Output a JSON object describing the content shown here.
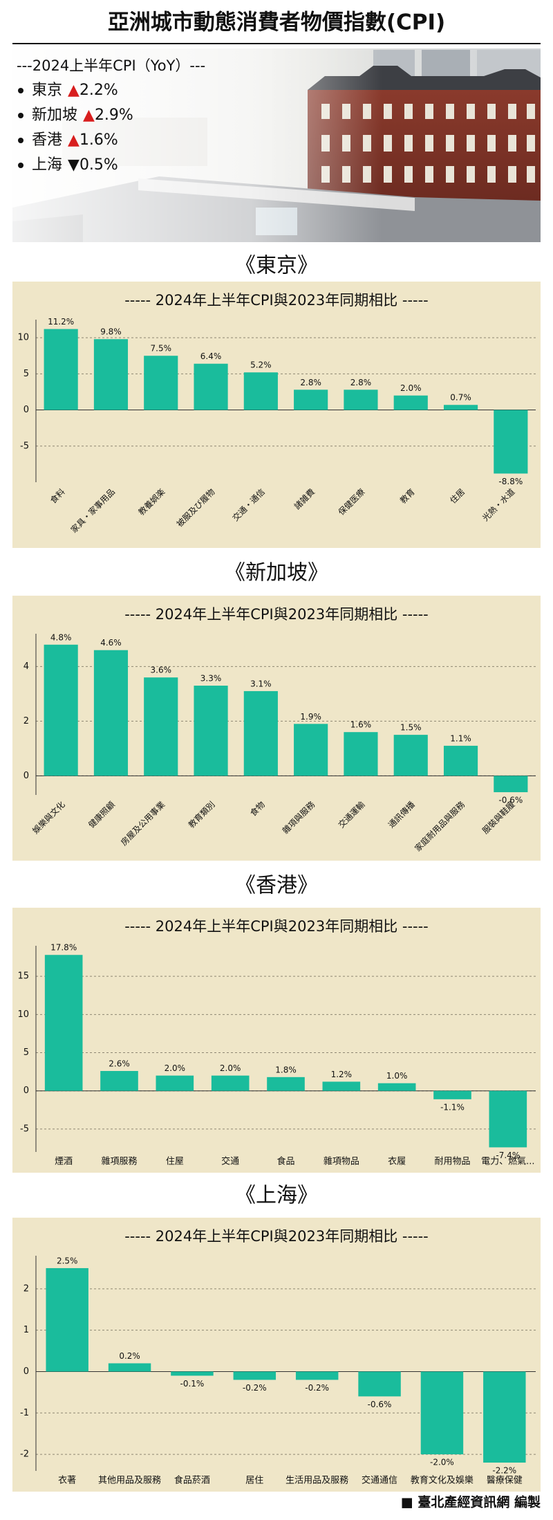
{
  "title": "亞洲城市動態消費者物價指數(CPI)",
  "summary": {
    "heading": "---2024上半年CPI（YoY）---",
    "items": [
      {
        "city": "東京",
        "marker": "▲",
        "marker_color": "#d81e1e",
        "value": "2.2%"
      },
      {
        "city": "新加坡",
        "marker": "▲",
        "marker_color": "#d81e1e",
        "value": "2.9%"
      },
      {
        "city": "香港",
        "marker": "▲",
        "marker_color": "#d81e1e",
        "value": "1.6%"
      },
      {
        "city": "上海",
        "marker": "▼",
        "marker_color": "#111111",
        "value": "0.5%"
      }
    ]
  },
  "chart_data": [
    {
      "type": "bar",
      "heading": "《東京》",
      "title": "----- 2024年上半年CPI與2023年同期相比 -----",
      "categories": [
        "食料",
        "家具・家事用品",
        "教養娯楽",
        "被服及び履物",
        "交通・通信",
        "諸雑費",
        "保健医療",
        "教育",
        "住居",
        "光熱・水道"
      ],
      "values": [
        11.2,
        9.8,
        7.5,
        6.4,
        5.2,
        2.8,
        2.8,
        2.0,
        0.7,
        -8.8
      ],
      "value_labels": [
        "11.2%",
        "9.8%",
        "7.5%",
        "6.4%",
        "5.2%",
        "2.8%",
        "2.8%",
        "2.0%",
        "0.7%",
        "-8.8%"
      ],
      "color": "#1abc9c",
      "ylim": [
        -10,
        12.5
      ],
      "yticks": [
        -5,
        0,
        5,
        10
      ],
      "grid": true
    },
    {
      "type": "bar",
      "heading": "《新加坡》",
      "title": "----- 2024年上半年CPI與2023年同期相比 -----",
      "categories": [
        "娛樂與文化",
        "健康照顧",
        "房屋及公用事業",
        "教育類別",
        "食物",
        "雜項與服務",
        "交通運輸",
        "通訊傳播",
        "家庭耐用品與服務",
        "服裝與鞋履"
      ],
      "values": [
        4.8,
        4.6,
        3.6,
        3.3,
        3.1,
        1.9,
        1.6,
        1.5,
        1.1,
        -0.6
      ],
      "value_labels": [
        "4.8%",
        "4.6%",
        "3.6%",
        "3.3%",
        "3.1%",
        "1.9%",
        "1.6%",
        "1.5%",
        "1.1%",
        "-0.6%"
      ],
      "color": "#1abc9c",
      "ylim": [
        -0.7,
        5.2
      ],
      "yticks": [
        0,
        2,
        4
      ],
      "grid": true
    },
    {
      "type": "bar",
      "heading": "《香港》",
      "title": "----- 2024年上半年CPI與2023年同期相比 -----",
      "categories": [
        "煙酒",
        "雜項服務",
        "住屋",
        "交通",
        "食品",
        "雜項物品",
        "衣履",
        "耐用物品",
        "電力、燃氣..."
      ],
      "values": [
        17.8,
        2.6,
        2.0,
        2.0,
        1.8,
        1.2,
        1.0,
        -1.1,
        -7.4
      ],
      "value_labels": [
        "17.8%",
        "2.6%",
        "2.0%",
        "2.0%",
        "1.8%",
        "1.2%",
        "1.0%",
        "-1.1%",
        "-7.4%"
      ],
      "color": "#1abc9c",
      "ylim": [
        -8,
        19
      ],
      "yticks": [
        -5,
        0,
        5,
        10,
        15
      ],
      "grid": true
    },
    {
      "type": "bar",
      "heading": "《上海》",
      "title": "----- 2024年上半年CPI與2023年同期相比 -----",
      "categories": [
        "衣著",
        "其他用品及服務",
        "食品菸酒",
        "居住",
        "生活用品及服務",
        "交通通信",
        "教育文化及娛樂",
        "醫療保健"
      ],
      "values": [
        2.5,
        0.2,
        -0.1,
        -0.2,
        -0.2,
        -0.6,
        -2.0,
        -2.2
      ],
      "value_labels": [
        "2.5%",
        "0.2%",
        "-0.1%",
        "-0.2%",
        "-0.2%",
        "-0.6%",
        "-2.0%",
        "-2.2%"
      ],
      "color": "#1abc9c",
      "ylim": [
        -2.4,
        2.8
      ],
      "yticks": [
        -2,
        -1,
        0,
        1,
        2
      ],
      "grid": true
    }
  ],
  "footer": "■ 臺北產經資訊網 編製"
}
